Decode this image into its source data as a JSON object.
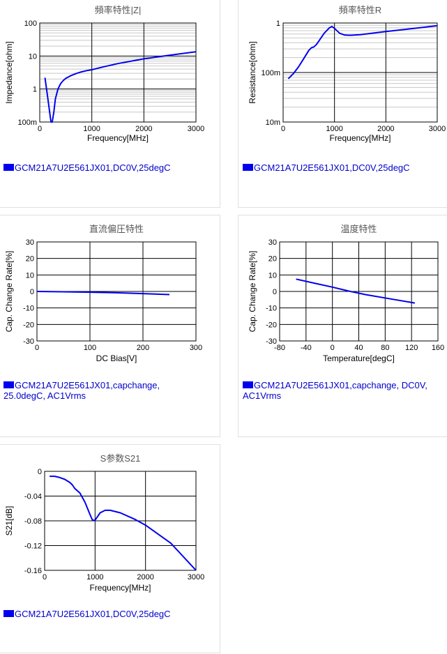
{
  "colors": {
    "series": "#0000ee",
    "legend_text": "#0000cc",
    "grid_major": "#000000",
    "grid_minor": "#c8c8c8",
    "title": "#555555"
  },
  "chart_data": [
    {
      "id": "impedance",
      "type": "line",
      "title": "頻率特性|Z|",
      "xlabel": "Frequency[MHz]",
      "ylabel": "Impedance[ohm]",
      "xlim": [
        0,
        3000
      ],
      "ylim": [
        0.1,
        100
      ],
      "yscale": "log",
      "xticks": [
        0,
        1000,
        2000,
        3000
      ],
      "xtick_labels": [
        "0",
        "1000",
        "2000",
        "3000"
      ],
      "yticks": [
        0.1,
        1,
        10,
        100
      ],
      "ytick_labels": [
        "100m",
        "1",
        "10",
        "100"
      ],
      "grid": true,
      "legend": "bottom-left",
      "series": [
        {
          "name": "GCM21A7U2E561JX01,DC0V,25degC",
          "x": [
            100,
            150,
            190,
            215,
            240,
            270,
            300,
            350,
            400,
            450,
            500,
            600,
            700,
            800,
            900,
            1000,
            1200,
            1500,
            2000,
            2500,
            3000
          ],
          "y": [
            2.2,
            0.6,
            0.2,
            0.1,
            0.1,
            0.2,
            0.5,
            1.0,
            1.45,
            1.8,
            2.1,
            2.55,
            2.95,
            3.3,
            3.6,
            3.85,
            4.6,
            5.9,
            8.2,
            10.6,
            13.5
          ]
        }
      ]
    },
    {
      "id": "resistance",
      "type": "line",
      "title": "頻率特性R",
      "xlabel": "Frequency[MHz]",
      "ylabel": "Resistance[ohm]",
      "xlim": [
        0,
        3000
      ],
      "ylim": [
        0.01,
        1
      ],
      "yscale": "log",
      "xticks": [
        0,
        1000,
        2000,
        3000
      ],
      "xtick_labels": [
        "0",
        "1000",
        "2000",
        "3000"
      ],
      "yticks": [
        0.01,
        0.1,
        1
      ],
      "ytick_labels": [
        "10m",
        "100m",
        "1"
      ],
      "grid": true,
      "legend": "bottom-left",
      "series": [
        {
          "name": "GCM21A7U2E561JX01,DC0V,25degC",
          "x": [
            100,
            200,
            300,
            400,
            500,
            550,
            600,
            650,
            700,
            800,
            900,
            950,
            1000,
            1100,
            1200,
            1300,
            1500,
            2000,
            2500,
            3000
          ],
          "y": [
            0.075,
            0.095,
            0.13,
            0.19,
            0.28,
            0.315,
            0.33,
            0.37,
            0.44,
            0.62,
            0.8,
            0.85,
            0.78,
            0.62,
            0.57,
            0.565,
            0.58,
            0.67,
            0.77,
            0.88
          ]
        }
      ]
    },
    {
      "id": "dc-bias",
      "type": "line",
      "title": "直流偏圧特性",
      "xlabel": "DC Bias[V]",
      "ylabel": "Cap. Change Rate[%]",
      "xlim": [
        0,
        300
      ],
      "ylim": [
        -30,
        30
      ],
      "yscale": "linear",
      "xticks": [
        0,
        100,
        200,
        300
      ],
      "xtick_labels": [
        "0",
        "100",
        "200",
        "300"
      ],
      "yticks": [
        -30,
        -20,
        -10,
        0,
        10,
        20,
        30
      ],
      "ytick_labels": [
        "-30",
        "-20",
        "-10",
        "0",
        "10",
        "20",
        "30"
      ],
      "grid": true,
      "legend": "bottom-left",
      "series": [
        {
          "name": "GCM21A7U2E561JX01,capchange, 25.0degC, AC1Vrms",
          "x": [
            0,
            50,
            100,
            150,
            200,
            250
          ],
          "y": [
            0,
            -0.2,
            -0.45,
            -0.8,
            -1.3,
            -1.9
          ]
        }
      ]
    },
    {
      "id": "temperature",
      "type": "line",
      "title": "温度特性",
      "xlabel": "Temperature[degC]",
      "ylabel": "Cap. Change Rate[%]",
      "xlim": [
        -80,
        160
      ],
      "ylim": [
        -30,
        30
      ],
      "yscale": "linear",
      "xticks": [
        -80,
        -40,
        0,
        40,
        80,
        120,
        160
      ],
      "xtick_labels": [
        "-80",
        "-40",
        "0",
        "40",
        "80",
        "120",
        "160"
      ],
      "yticks": [
        -30,
        -20,
        -10,
        0,
        10,
        20,
        30
      ],
      "ytick_labels": [
        "-30",
        "-20",
        "-10",
        "0",
        "10",
        "20",
        "30"
      ],
      "grid": true,
      "legend": "bottom-left",
      "series": [
        {
          "name": "GCM21A7U2E561JX01,capchange, DC0V, AC1Vrms",
          "x": [
            -55,
            -25,
            0,
            25,
            50,
            85,
            125
          ],
          "y": [
            7.5,
            4.8,
            2.6,
            0.2,
            -1.9,
            -4.3,
            -7.0
          ]
        }
      ]
    },
    {
      "id": "s21",
      "type": "line",
      "title": "S参数S21",
      "xlabel": "Frequency[MHz]",
      "ylabel": "S21[dB]",
      "xlim": [
        0,
        3000
      ],
      "ylim": [
        -0.16,
        0
      ],
      "yscale": "linear",
      "xticks": [
        0,
        1000,
        2000,
        3000
      ],
      "xtick_labels": [
        "0",
        "1000",
        "2000",
        "3000"
      ],
      "yticks": [
        -0.16,
        -0.12,
        -0.08,
        -0.04,
        0
      ],
      "ytick_labels": [
        "-0.16",
        "-0.12",
        "-0.08",
        "-0.04",
        "0"
      ],
      "grid": true,
      "legend": "bottom-left",
      "series": [
        {
          "name": "GCM21A7U2E561JX01,DC0V,25degC",
          "x": [
            100,
            200,
            300,
            400,
            500,
            550,
            600,
            700,
            800,
            900,
            950,
            1000,
            1100,
            1200,
            1300,
            1500,
            1800,
            2000,
            2500,
            3000
          ],
          "y": [
            -0.008,
            -0.008,
            -0.01,
            -0.013,
            -0.018,
            -0.022,
            -0.028,
            -0.035,
            -0.05,
            -0.07,
            -0.079,
            -0.079,
            -0.067,
            -0.063,
            -0.063,
            -0.067,
            -0.078,
            -0.087,
            -0.116,
            -0.16
          ]
        }
      ]
    }
  ]
}
